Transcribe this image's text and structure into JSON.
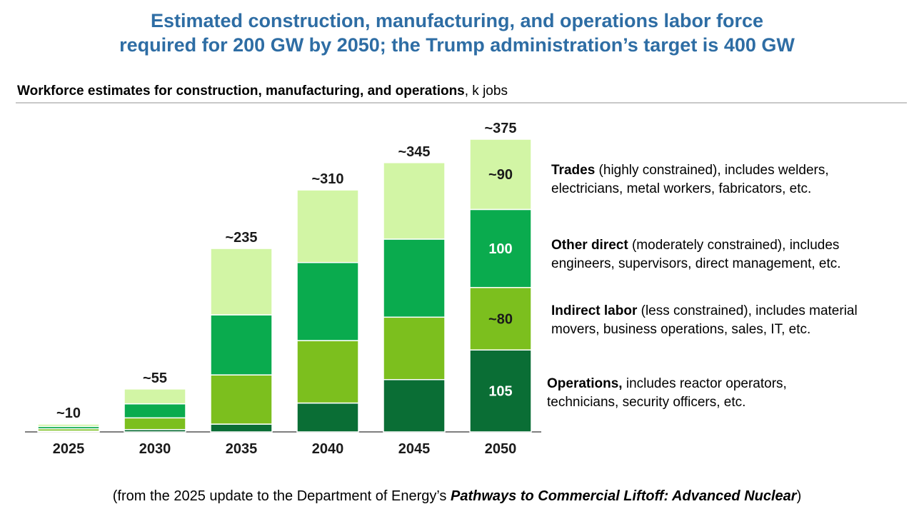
{
  "page": {
    "title_line1": "Estimated construction, manufacturing, and operations labor force",
    "title_line2": "required for 200 GW by 2050; the Trump administration’s target is 400 GW",
    "source_prefix": "(from the 2025 update to the Department of Energy’s ",
    "source_title": "Pathways to Commercial Liftoff: Advanced Nuclear",
    "source_suffix": ")"
  },
  "chart_data": {
    "type": "bar",
    "stacked": true,
    "title": "Workforce estimates for construction, manufacturing, and operations",
    "title_unit": ", k jobs",
    "categories": [
      "2025",
      "2030",
      "2035",
      "2040",
      "2045",
      "2050"
    ],
    "ylim": [
      0,
      375
    ],
    "grid": false,
    "legend_placement": "right",
    "totals": [
      10,
      55,
      235,
      310,
      345,
      375
    ],
    "total_labels": [
      "~10",
      "~55",
      "~235",
      "~310",
      "~345",
      "~375"
    ],
    "series": [
      {
        "key": "operations",
        "color": "#0a6e35",
        "values": [
          1,
          3,
          10,
          37,
          67,
          105
        ],
        "segment_labels": [
          "",
          "",
          "",
          "",
          "",
          "105"
        ],
        "legend_bold": "Operations,",
        "legend_rest_line1": " includes reactor operators,",
        "legend_line2": "technicians, security officers, etc."
      },
      {
        "key": "indirect",
        "color": "#7cbf1e",
        "values": [
          3,
          15,
          63,
          80,
          80,
          80
        ],
        "segment_labels": [
          "",
          "",
          "",
          "",
          "",
          "~80"
        ],
        "legend_bold": "Indirect labor",
        "legend_rest_line1": " (less constrained), includes material",
        "legend_line2": "movers, business operations, sales, IT, etc."
      },
      {
        "key": "other_direct",
        "color": "#0aab4e",
        "values": [
          3,
          18,
          77,
          100,
          100,
          100
        ],
        "segment_labels": [
          "",
          "",
          "",
          "",
          "",
          "100"
        ],
        "legend_bold": "Other direct",
        "legend_rest_line1": " (moderately constrained), includes",
        "legend_line2": "engineers, supervisors, direct management, etc."
      },
      {
        "key": "trades",
        "color": "#d2f5a5",
        "values": [
          3,
          19,
          85,
          93,
          98,
          90
        ],
        "segment_labels": [
          "",
          "",
          "",
          "",
          "",
          "~90"
        ],
        "legend_bold": "Trades",
        "legend_rest_line1": " (highly constrained), includes welders,",
        "legend_line2": "electricians, metal workers, fabricators, etc."
      }
    ]
  }
}
